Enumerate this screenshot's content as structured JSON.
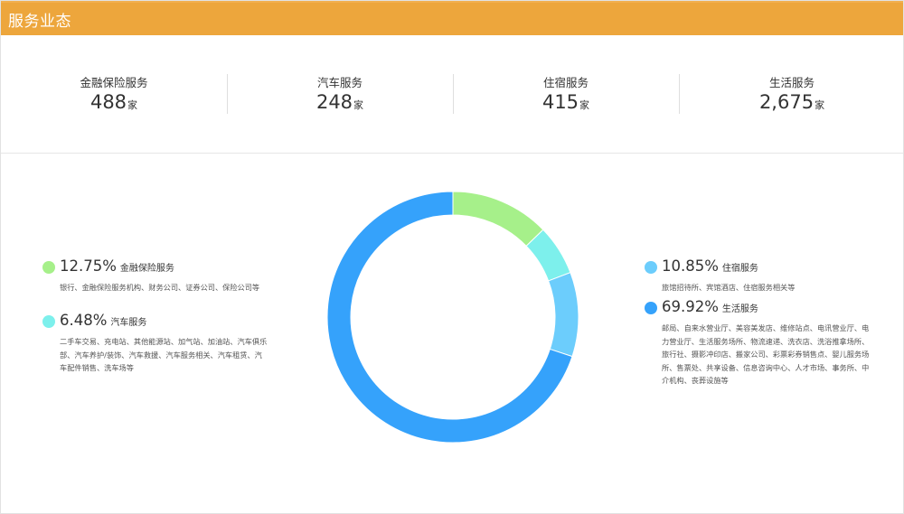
{
  "header": {
    "title": "服务业态"
  },
  "stats": [
    {
      "label": "金融保险服务",
      "value": "488",
      "unit": "家"
    },
    {
      "label": "汽车服务",
      "value": "248",
      "unit": "家"
    },
    {
      "label": "住宿服务",
      "value": "415",
      "unit": "家"
    },
    {
      "label": "生活服务",
      "value": "2,675",
      "unit": "家"
    }
  ],
  "legend": {
    "finance": {
      "percent": "12.75%",
      "name": "金融保险服务",
      "desc": "银行、金融保险服务机构、财务公司、证券公司、保险公司等",
      "color": "#a6f08a"
    },
    "auto": {
      "percent": "6.48%",
      "name": "汽车服务",
      "desc": "二手车交易、充电站、其他能源站、加气站、加油站、汽车俱乐部、汽车养护/装饰、汽车救援、汽车服务相关、汽车租赁、汽车配件销售、洗车场等",
      "color": "#7df0ec"
    },
    "lodging": {
      "percent": "10.85%",
      "name": "住宿服务",
      "desc": "旅馆招待所、宾馆酒店、住宿服务相关等",
      "color": "#6ccdfc"
    },
    "life": {
      "percent": "69.92%",
      "name": "生活服务",
      "desc": "邮局、自来水营业厅、美容美发店、维修站点、电讯营业厅、电力营业厅、生活服务场所、物流速递、洗衣店、洗浴推拿场所、旅行社、摄影冲印店、搬家公司、彩票彩券销售点、婴儿服务场所、售票处、共享设备、信息咨询中心、人才市场、事务所、中介机构、丧葬设施等",
      "color": "#35a2fb"
    }
  },
  "chart_data": {
    "type": "pie",
    "title": "",
    "categories": [
      "金融保险服务",
      "汽车服务",
      "住宿服务",
      "生活服务"
    ],
    "values": [
      12.75,
      6.48,
      10.85,
      69.92
    ],
    "counts": [
      488,
      248,
      415,
      2675
    ],
    "colors": [
      "#a6f08a",
      "#7df0ec",
      "#6ccdfc",
      "#35a2fb"
    ],
    "donut": true,
    "start_angle": "top",
    "direction": "clockwise"
  }
}
